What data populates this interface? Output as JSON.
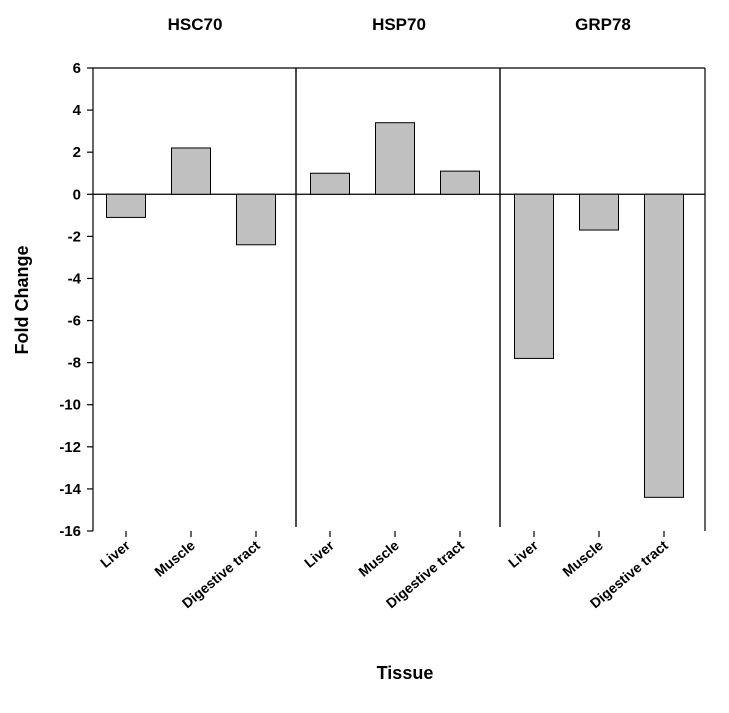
{
  "chart_data": {
    "type": "bar",
    "groups": [
      {
        "name": "HSC70",
        "categories": [
          "Liver",
          "Muscle",
          "Digestive tract"
        ],
        "values": [
          -1.1,
          2.2,
          -2.4
        ]
      },
      {
        "name": "HSP70",
        "categories": [
          "Liver",
          "Muscle",
          "Digestive tract"
        ],
        "values": [
          1.0,
          3.4,
          1.1
        ]
      },
      {
        "name": "GRP78",
        "categories": [
          "Liver",
          "Muscle",
          "Digestive tract"
        ],
        "values": [
          -7.8,
          -1.7,
          -14.4
        ]
      }
    ],
    "xlabel": "Tissue",
    "ylabel": "Fold Change",
    "ylim": [
      -16,
      6
    ],
    "yticks": [
      "6",
      "4",
      "2",
      "0",
      "-2",
      "-4",
      "-6",
      "-8",
      "-10",
      "-12",
      "-14",
      "-16"
    ],
    "ytick_values": [
      6,
      4,
      2,
      0,
      -2,
      -4,
      -6,
      -8,
      -10,
      -12,
      -14,
      -16
    ],
    "grid": false,
    "bar_color": "#c0c0c0",
    "edge_color": "#000000"
  }
}
